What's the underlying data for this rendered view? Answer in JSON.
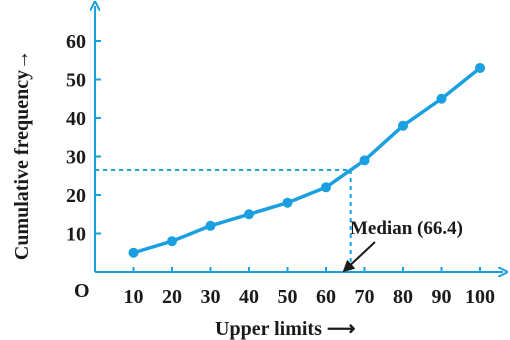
{
  "chart_data": {
    "type": "line",
    "xlabel": "Upper limits ⟶",
    "ylabel": "Cumulative frequency→",
    "origin_label": "O",
    "x": [
      10,
      20,
      30,
      40,
      50,
      60,
      70,
      80,
      90,
      100
    ],
    "y": [
      5,
      8,
      12,
      15,
      18,
      22,
      29,
      38,
      45,
      53
    ],
    "xlim": [
      0,
      105
    ],
    "ylim": [
      0,
      65
    ],
    "xticks": [
      10,
      20,
      30,
      40,
      50,
      60,
      70,
      80,
      90,
      100
    ],
    "yticks": [
      10,
      20,
      30,
      40,
      50,
      60
    ],
    "grid": false,
    "median_marker": {
      "x": 66.4,
      "y": 26.5
    },
    "annotation": "Median (66.4)",
    "line_color": "#1aa0e0",
    "axis_color": "#1aa0e0",
    "text_color": "#1a1a1a"
  }
}
